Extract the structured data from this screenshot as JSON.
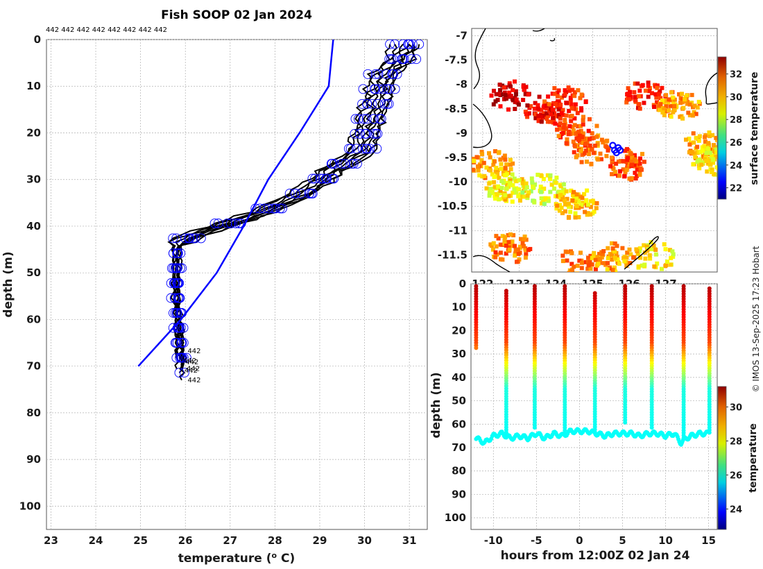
{
  "title": "Fish SOOP 02 Jan 2024",
  "credit": "© IMOS 13-Sep-2025 17:23 Hobart",
  "colors": {
    "profile_line": "#000000",
    "marker": "#0000ff",
    "climatology": "#0000ff",
    "grid": "#b0b0b0",
    "coast": "#000000"
  },
  "chart_data": [
    {
      "type": "line",
      "name": "depth-profiles",
      "xlabel": "temperature (° C)",
      "ylabel": "depth (m)",
      "xlim": [
        22.9,
        31.4
      ],
      "ylim": [
        105,
        0
      ],
      "xticks": [
        23,
        24,
        25,
        26,
        27,
        28,
        29,
        30,
        31
      ],
      "yticks": [
        0,
        10,
        20,
        30,
        40,
        50,
        60,
        70,
        80,
        90,
        100
      ],
      "profile_labels_top": [
        "442",
        "442",
        "442",
        "442",
        "442",
        "442",
        "442",
        "442"
      ],
      "profile_labels_bottom": [
        {
          "text": "442",
          "t": 26.05,
          "d": 67.2
        },
        {
          "text": "442",
          "t": 25.95,
          "d": 69.3
        },
        {
          "text": "442",
          "t": 26.0,
          "d": 69.6
        },
        {
          "text": "442",
          "t": 26.03,
          "d": 71.0
        },
        {
          "text": "442",
          "t": 25.98,
          "d": 71.4
        },
        {
          "text": "442",
          "t": 26.05,
          "d": 73.5
        }
      ],
      "profile_base": {
        "depth": [
          1,
          4,
          8,
          12,
          18,
          24,
          28,
          33,
          37,
          41,
          43,
          45,
          47,
          55,
          62,
          68
        ],
        "temp": [
          30.9,
          30.8,
          30.4,
          30.3,
          30.1,
          29.9,
          29.3,
          28.6,
          27.7,
          26.5,
          25.9,
          25.8,
          25.8,
          25.8,
          25.85,
          25.9
        ]
      },
      "profile_offsets": [
        {
          "shift": 0.0,
          "bottom": 72
        },
        {
          "shift": 0.15,
          "bottom": 70
        },
        {
          "shift": -0.2,
          "bottom": 68
        },
        {
          "shift": 0.3,
          "bottom": 71
        },
        {
          "shift": -0.1,
          "bottom": 69
        },
        {
          "shift": 0.25,
          "bottom": 70
        },
        {
          "shift": -0.3,
          "bottom": 71
        },
        {
          "shift": 0.1,
          "bottom": 73
        }
      ],
      "climatology": {
        "name": "climatology",
        "depth": [
          0,
          5,
          10,
          20,
          30,
          40,
          50,
          60,
          70
        ],
        "temp": [
          29.3,
          29.25,
          29.2,
          28.55,
          27.85,
          27.3,
          26.7,
          25.9,
          24.95
        ]
      }
    },
    {
      "type": "heatmap",
      "name": "surface-map",
      "colorbar_label": "surface temperature",
      "xticks": [
        122,
        123,
        124,
        125,
        126,
        127
      ],
      "xtick_labels": [
        "122",
        "123",
        "124",
        "125",
        "126",
        "127"
      ],
      "xlim": [
        121.7,
        128.4
      ],
      "ylim": [
        -11.85,
        -6.85
      ],
      "yticks": [
        -7,
        -7.5,
        -8,
        -8.5,
        -9,
        -9.5,
        -10,
        -10.5,
        -11,
        -11.5
      ],
      "ytick_labels": [
        "-7",
        "-7.5",
        "-8",
        "-8.5",
        "-9",
        "-9.5",
        "-10",
        "-10.5",
        "-11",
        "-11.5"
      ],
      "clim": [
        21,
        33.5
      ],
      "colorbar_ticks": [
        22,
        24,
        26,
        28,
        30,
        32
      ],
      "ship_track": {
        "lon": [
          125.55,
          125.6,
          125.7,
          125.65,
          125.75
        ],
        "lat": [
          -9.25,
          -9.35,
          -9.3,
          -9.4,
          -9.35
        ]
      },
      "patches": [
        {
          "lon": 122.7,
          "lat": -8.2,
          "temp": 32.5
        },
        {
          "lon": 123.6,
          "lat": -8.5,
          "temp": 32.0
        },
        {
          "lon": 124.2,
          "lat": -8.3,
          "temp": 31.5
        },
        {
          "lon": 124.5,
          "lat": -8.9,
          "temp": 31.0
        },
        {
          "lon": 124.9,
          "lat": -9.3,
          "temp": 30.5
        },
        {
          "lon": 125.9,
          "lat": -9.6,
          "temp": 31.0
        },
        {
          "lon": 126.4,
          "lat": -8.2,
          "temp": 31.5
        },
        {
          "lon": 127.3,
          "lat": -8.4,
          "temp": 30.0
        },
        {
          "lon": 128.0,
          "lat": -9.2,
          "temp": 30.0
        },
        {
          "lon": 128.2,
          "lat": -9.5,
          "temp": 29.0
        },
        {
          "lon": 122.2,
          "lat": -9.6,
          "temp": 30.0
        },
        {
          "lon": 122.6,
          "lat": -10.1,
          "temp": 29.0
        },
        {
          "lon": 123.6,
          "lat": -10.1,
          "temp": 28.5
        },
        {
          "lon": 124.5,
          "lat": -10.4,
          "temp": 29.5
        },
        {
          "lon": 122.7,
          "lat": -11.3,
          "temp": 30.5
        },
        {
          "lon": 124.6,
          "lat": -11.6,
          "temp": 30.5
        },
        {
          "lon": 125.5,
          "lat": -11.5,
          "temp": 30.0
        },
        {
          "lon": 126.6,
          "lat": -11.5,
          "temp": 29.0
        }
      ]
    },
    {
      "type": "scatter",
      "name": "depth-time-section",
      "xlabel": "hours from 12:00Z 02 Jan 24",
      "ylabel": "depth (m)",
      "colorbar_label": "temperature",
      "xlim": [
        -12.6,
        16
      ],
      "ylim": [
        105,
        0
      ],
      "xticks": [
        -10,
        -5,
        0,
        5,
        10,
        15
      ],
      "yticks": [
        0,
        10,
        20,
        30,
        40,
        50,
        60,
        70,
        80,
        90,
        100
      ],
      "clim": [
        22.8,
        31.2
      ],
      "colorbar_ticks": [
        24,
        26,
        28,
        30
      ],
      "casts": [
        {
          "hour": -12.0,
          "top": 1,
          "bottom": 28
        },
        {
          "hour": -8.5,
          "top": 3,
          "bottom": 66
        },
        {
          "hour": -5.2,
          "top": 1,
          "bottom": 62
        },
        {
          "hour": -1.7,
          "top": 1,
          "bottom": 65
        },
        {
          "hour": 1.8,
          "top": 4,
          "bottom": 64
        },
        {
          "hour": 5.3,
          "top": 1,
          "bottom": 60
        },
        {
          "hour": 8.4,
          "top": 1,
          "bottom": 62
        },
        {
          "hour": 12.1,
          "top": 1,
          "bottom": 66
        },
        {
          "hour": 15.1,
          "top": 2,
          "bottom": 64
        }
      ],
      "tow_depth": [
        {
          "h": -12.0,
          "d": 66
        },
        {
          "h": -11.0,
          "d": 68
        },
        {
          "h": -10.0,
          "d": 65
        },
        {
          "h": -9.0,
          "d": 64
        },
        {
          "h": -8.0,
          "d": 66
        },
        {
          "h": -7.0,
          "d": 65
        },
        {
          "h": -6.0,
          "d": 66
        },
        {
          "h": -5.0,
          "d": 64
        },
        {
          "h": -4.0,
          "d": 66
        },
        {
          "h": -3.0,
          "d": 64
        },
        {
          "h": -2.0,
          "d": 65
        },
        {
          "h": -1.0,
          "d": 63
        },
        {
          "h": 0.0,
          "d": 63
        },
        {
          "h": 1.0,
          "d": 63
        },
        {
          "h": 2.0,
          "d": 64
        },
        {
          "h": 3.0,
          "d": 65
        },
        {
          "h": 4.0,
          "d": 64
        },
        {
          "h": 5.0,
          "d": 64
        },
        {
          "h": 6.0,
          "d": 64
        },
        {
          "h": 7.0,
          "d": 65
        },
        {
          "h": 8.0,
          "d": 64
        },
        {
          "h": 9.0,
          "d": 64
        },
        {
          "h": 10.0,
          "d": 65
        },
        {
          "h": 11.0,
          "d": 64
        },
        {
          "h": 11.8,
          "d": 68
        },
        {
          "h": 12.4,
          "d": 66
        },
        {
          "h": 13.0,
          "d": 65
        },
        {
          "h": 14.0,
          "d": 64
        },
        {
          "h": 15.0,
          "d": 64
        }
      ]
    }
  ]
}
